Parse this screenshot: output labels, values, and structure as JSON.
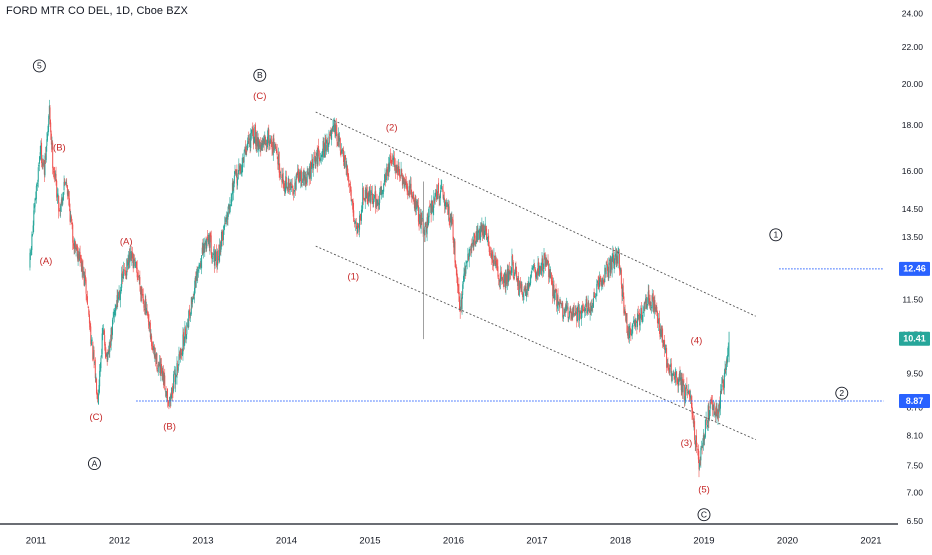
{
  "chart_data": {
    "type": "candlestick",
    "title": "FORD MTR CO DEL, 1D, Cboe BZX",
    "y_scale": "log",
    "ylim": [
      6.5,
      24.0
    ],
    "xlim": [
      2010.9,
      2021.15
    ],
    "grid": false,
    "y_ticks": [
      "24.00",
      "22.00",
      "20.00",
      "18.00",
      "16.00",
      "14.50",
      "13.50",
      "12.50",
      "11.50",
      "10.50",
      "9.50",
      "8.70",
      "8.10",
      "7.50",
      "7.00",
      "6.50"
    ],
    "x_ticks": [
      {
        "label": "2011",
        "year": 2011.0
      },
      {
        "label": "2012",
        "year": 2012.0
      },
      {
        "label": "2013",
        "year": 2013.0
      },
      {
        "label": "2014",
        "year": 2014.0
      },
      {
        "label": "2015",
        "year": 2015.0
      },
      {
        "label": "2016",
        "year": 2016.0
      },
      {
        "label": "2017",
        "year": 2017.0
      },
      {
        "label": "2018",
        "year": 2018.0
      },
      {
        "label": "2019",
        "year": 2019.0
      },
      {
        "label": "2020",
        "year": 2020.0
      },
      {
        "label": "2021",
        "year": 2021.0
      }
    ],
    "colors": {
      "up": "#26a69a",
      "down": "#ef5350",
      "wave_label": "#c62828",
      "level_line": "#2962ff",
      "channel": "#555555",
      "last_price_bg": "#26a69a"
    },
    "price_path": [
      [
        2010.92,
        12.5
      ],
      [
        2011.05,
        17.0
      ],
      [
        2011.1,
        16.0
      ],
      [
        2011.16,
        18.7
      ],
      [
        2011.2,
        16.5
      ],
      [
        2011.28,
        14.5
      ],
      [
        2011.36,
        15.8
      ],
      [
        2011.44,
        13.5
      ],
      [
        2011.52,
        12.9
      ],
      [
        2011.6,
        11.8
      ],
      [
        2011.68,
        10.0
      ],
      [
        2011.74,
        9.0
      ],
      [
        2011.8,
        10.6
      ],
      [
        2011.86,
        9.8
      ],
      [
        2011.94,
        11.2
      ],
      [
        2012.05,
        12.3
      ],
      [
        2012.14,
        12.8
      ],
      [
        2012.22,
        12.3
      ],
      [
        2012.3,
        11.4
      ],
      [
        2012.4,
        10.1
      ],
      [
        2012.48,
        9.6
      ],
      [
        2012.55,
        9.2
      ],
      [
        2012.6,
        8.85
      ],
      [
        2012.68,
        9.6
      ],
      [
        2012.76,
        10.3
      ],
      [
        2012.86,
        11.4
      ],
      [
        2012.96,
        12.6
      ],
      [
        2013.06,
        13.6
      ],
      [
        2013.16,
        12.6
      ],
      [
        2013.26,
        14.0
      ],
      [
        2013.36,
        15.5
      ],
      [
        2013.46,
        16.2
      ],
      [
        2013.54,
        17.3
      ],
      [
        2013.62,
        17.6
      ],
      [
        2013.7,
        17.0
      ],
      [
        2013.78,
        17.5
      ],
      [
        2013.88,
        16.8
      ],
      [
        2013.96,
        15.6
      ],
      [
        2014.06,
        15.3
      ],
      [
        2014.14,
        15.8
      ],
      [
        2014.24,
        15.7
      ],
      [
        2014.32,
        16.3
      ],
      [
        2014.4,
        16.8
      ],
      [
        2014.5,
        17.3
      ],
      [
        2014.58,
        17.8
      ],
      [
        2014.66,
        16.8
      ],
      [
        2014.76,
        15.5
      ],
      [
        2014.82,
        14.0
      ],
      [
        2014.86,
        13.8
      ],
      [
        2014.92,
        15.2
      ],
      [
        2015.02,
        15.0
      ],
      [
        2015.1,
        14.8
      ],
      [
        2015.18,
        15.8
      ],
      [
        2015.26,
        16.5
      ],
      [
        2015.34,
        16.1
      ],
      [
        2015.42,
        15.3
      ],
      [
        2015.5,
        15.2
      ],
      [
        2015.58,
        14.3
      ],
      [
        2015.66,
        13.8
      ],
      [
        2015.74,
        14.7
      ],
      [
        2015.82,
        15.3
      ],
      [
        2015.9,
        14.8
      ],
      [
        2015.98,
        14.1
      ],
      [
        2016.04,
        12.3
      ],
      [
        2016.08,
        11.2
      ],
      [
        2016.14,
        12.4
      ],
      [
        2016.22,
        13.3
      ],
      [
        2016.3,
        13.7
      ],
      [
        2016.38,
        13.8
      ],
      [
        2016.46,
        12.8
      ],
      [
        2016.54,
        12.3
      ],
      [
        2016.62,
        12.1
      ],
      [
        2016.7,
        12.6
      ],
      [
        2016.78,
        11.9
      ],
      [
        2016.86,
        11.7
      ],
      [
        2016.94,
        12.5
      ],
      [
        2017.02,
        12.4
      ],
      [
        2017.1,
        12.8
      ],
      [
        2017.18,
        11.9
      ],
      [
        2017.26,
        11.4
      ],
      [
        2017.34,
        11.1
      ],
      [
        2017.42,
        11.2
      ],
      [
        2017.5,
        11.1
      ],
      [
        2017.58,
        11.4
      ],
      [
        2017.66,
        11.2
      ],
      [
        2017.74,
        12.0
      ],
      [
        2017.82,
        12.3
      ],
      [
        2017.9,
        12.7
      ],
      [
        2017.98,
        12.8
      ],
      [
        2018.04,
        11.3
      ],
      [
        2018.1,
        10.5
      ],
      [
        2018.18,
        10.9
      ],
      [
        2018.26,
        11.1
      ],
      [
        2018.34,
        11.6
      ],
      [
        2018.42,
        11.2
      ],
      [
        2018.48,
        10.6
      ],
      [
        2018.56,
        9.8
      ],
      [
        2018.64,
        9.4
      ],
      [
        2018.72,
        9.3
      ],
      [
        2018.78,
        9.0
      ],
      [
        2018.84,
        9.1
      ],
      [
        2018.88,
        8.3
      ],
      [
        2018.94,
        7.55
      ],
      [
        2019.0,
        8.1
      ],
      [
        2019.05,
        8.6
      ],
      [
        2019.1,
        8.8
      ],
      [
        2019.16,
        8.5
      ],
      [
        2019.22,
        9.2
      ],
      [
        2019.26,
        9.55
      ],
      [
        2019.29,
        10.3
      ]
    ],
    "channel": {
      "upper": [
        [
          2014.35,
          18.65
        ],
        [
          2019.62,
          11.03
        ]
      ],
      "lower": [
        [
          2014.35,
          13.21
        ],
        [
          2019.62,
          8.03
        ]
      ]
    },
    "wave_labels": [
      {
        "text": "(B)",
        "year": 2011.28,
        "price": 17.0,
        "color": "red"
      },
      {
        "text": "(A)",
        "year": 2011.12,
        "price": 12.7,
        "color": "red"
      },
      {
        "text": "(A)",
        "year": 2012.08,
        "price": 13.35,
        "color": "red"
      },
      {
        "text": "(C)",
        "year": 2011.72,
        "price": 8.5,
        "color": "red"
      },
      {
        "text": "(B)",
        "year": 2012.6,
        "price": 8.3,
        "color": "red"
      },
      {
        "text": "(C)",
        "year": 2013.68,
        "price": 19.4,
        "color": "red"
      },
      {
        "text": "(2)",
        "year": 2015.26,
        "price": 17.9,
        "color": "red"
      },
      {
        "text": "(1)",
        "year": 2014.8,
        "price": 12.2,
        "color": "red"
      },
      {
        "text": "(4)",
        "year": 2018.91,
        "price": 10.35,
        "color": "red"
      },
      {
        "text": "(3)",
        "year": 2018.79,
        "price": 7.95,
        "color": "red"
      },
      {
        "text": "(5)",
        "year": 2019.0,
        "price": 7.05,
        "color": "red"
      }
    ],
    "circle_labels": [
      {
        "text": "5",
        "year": 2011.04,
        "price": 21.0
      },
      {
        "text": "B",
        "year": 2013.68,
        "price": 20.5
      },
      {
        "text": "A",
        "year": 2011.7,
        "price": 7.55
      },
      {
        "text": "1",
        "year": 2019.86,
        "price": 13.6
      },
      {
        "text": "2",
        "year": 2020.65,
        "price": 9.05
      },
      {
        "text": "C",
        "year": 2019.0,
        "price": 6.62
      }
    ],
    "levels": [
      {
        "name": "8.87",
        "price": 8.87,
        "x_start": 2012.2,
        "x_end": 2021.15,
        "style": "dotted"
      },
      {
        "name": "12.46",
        "price": 12.46,
        "x_start": 2019.9,
        "x_end": 2021.15,
        "style": "dotted"
      }
    ],
    "price_tags": [
      {
        "label": "12.46",
        "price": 12.46,
        "color": "#2962ff"
      },
      {
        "label": "10.41",
        "price": 10.41,
        "color": "#26a69a"
      },
      {
        "label": "8.87",
        "price": 8.87,
        "color": "#2962ff"
      }
    ]
  }
}
